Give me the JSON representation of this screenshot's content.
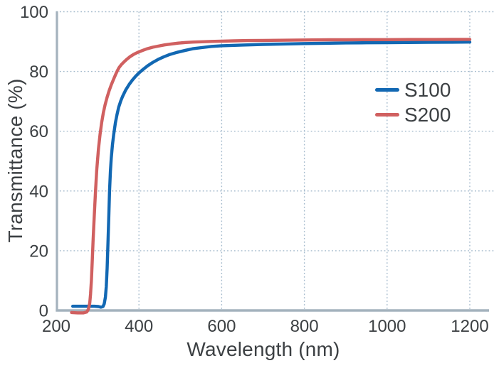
{
  "chart_data": {
    "type": "line",
    "title": "",
    "xlabel": "Wavelength (nm)",
    "ylabel": "Transmittance (%)",
    "xlim": [
      200,
      1258
    ],
    "ylim": [
      0,
      100
    ],
    "x_ticks": [
      200,
      400,
      600,
      800,
      1000,
      1200
    ],
    "y_ticks": [
      0,
      20,
      40,
      60,
      80,
      100
    ],
    "grid": "dotted both axes",
    "legend_position": "inside upper right",
    "series": [
      {
        "name": "S100",
        "color": "#1268b3",
        "points": [
          [
            240,
            1.4
          ],
          [
            258,
            1.4
          ],
          [
            276,
            1.4
          ],
          [
            292,
            1.4
          ],
          [
            302,
            1.3
          ],
          [
            308,
            1.1
          ],
          [
            313,
            1.3
          ],
          [
            316,
            2.2
          ],
          [
            319,
            4.5
          ],
          [
            321,
            8
          ],
          [
            323,
            14
          ],
          [
            325,
            22
          ],
          [
            327,
            31
          ],
          [
            329,
            40
          ],
          [
            331,
            46.5
          ],
          [
            333,
            51
          ],
          [
            336,
            55.5
          ],
          [
            339,
            59
          ],
          [
            343,
            62.8
          ],
          [
            347,
            65.6
          ],
          [
            351,
            68
          ],
          [
            356,
            70.1
          ],
          [
            361,
            71.8
          ],
          [
            368,
            73.8
          ],
          [
            376,
            75.6
          ],
          [
            384,
            77.1
          ],
          [
            392,
            78.4
          ],
          [
            400,
            79.5
          ],
          [
            410,
            80.7
          ],
          [
            421,
            81.9
          ],
          [
            433,
            83
          ],
          [
            446,
            84
          ],
          [
            460,
            84.9
          ],
          [
            475,
            85.7
          ],
          [
            492,
            86.4
          ],
          [
            510,
            87
          ],
          [
            530,
            87.6
          ],
          [
            552,
            88
          ],
          [
            576,
            88.4
          ],
          [
            600,
            88.6
          ],
          [
            650,
            88.85
          ],
          [
            700,
            89.05
          ],
          [
            750,
            89.2
          ],
          [
            800,
            89.35
          ],
          [
            850,
            89.45
          ],
          [
            900,
            89.55
          ],
          [
            950,
            89.6
          ],
          [
            1000,
            89.65
          ],
          [
            1050,
            89.7
          ],
          [
            1100,
            89.75
          ],
          [
            1150,
            89.8
          ],
          [
            1200,
            89.85
          ]
        ]
      },
      {
        "name": "S200",
        "color": "#d06060",
        "points": [
          [
            237,
            -0.7
          ],
          [
            252,
            -0.8
          ],
          [
            266,
            -0.8
          ],
          [
            274,
            -0.5
          ],
          [
            278,
            0.5
          ],
          [
            281,
            2.5
          ],
          [
            283,
            5.5
          ],
          [
            285,
            10
          ],
          [
            287,
            16
          ],
          [
            289,
            23
          ],
          [
            292,
            32
          ],
          [
            295,
            40
          ],
          [
            298,
            47
          ],
          [
            302,
            54
          ],
          [
            306,
            59
          ],
          [
            310,
            63
          ],
          [
            314,
            66.2
          ],
          [
            318,
            68.8
          ],
          [
            323,
            71.4
          ],
          [
            328,
            73.6
          ],
          [
            333,
            75.5
          ],
          [
            338,
            77.2
          ],
          [
            343,
            78.8
          ],
          [
            348,
            80.3
          ],
          [
            352,
            81.3
          ],
          [
            357,
            82.2
          ],
          [
            363,
            83.1
          ],
          [
            370,
            84
          ],
          [
            378,
            84.9
          ],
          [
            387,
            85.7
          ],
          [
            397,
            86.4
          ],
          [
            408,
            87
          ],
          [
            420,
            87.6
          ],
          [
            433,
            88.1
          ],
          [
            447,
            88.5
          ],
          [
            462,
            88.9
          ],
          [
            478,
            89.2
          ],
          [
            495,
            89.5
          ],
          [
            513,
            89.7
          ],
          [
            532,
            89.85
          ],
          [
            552,
            89.95
          ],
          [
            575,
            90.05
          ],
          [
            600,
            90.15
          ],
          [
            630,
            90.25
          ],
          [
            662,
            90.35
          ],
          [
            700,
            90.4
          ],
          [
            740,
            90.45
          ],
          [
            780,
            90.5
          ],
          [
            820,
            90.55
          ],
          [
            860,
            90.6
          ],
          [
            900,
            90.6
          ],
          [
            950,
            90.65
          ],
          [
            1000,
            90.65
          ],
          [
            1060,
            90.7
          ],
          [
            1120,
            90.7
          ],
          [
            1200,
            90.75
          ]
        ]
      }
    ]
  },
  "colors": {
    "background": "#ffffff",
    "axis_line": "#a4b2bd",
    "grid_line": "#a4bacc",
    "text": "#3c4043"
  }
}
